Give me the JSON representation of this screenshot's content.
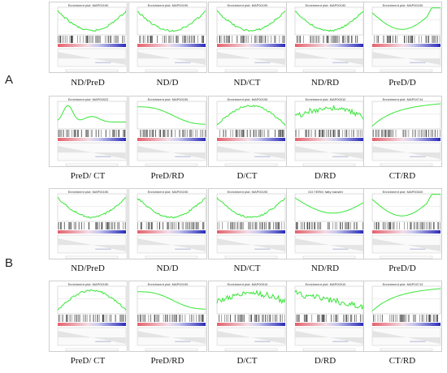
{
  "figure": {
    "sections": [
      {
        "label": "A",
        "rows": [
          {
            "panels": [
              {
                "title": "Enrichment plot: MAP00190",
                "caption": "ND/PreD",
                "curve": "valley"
              },
              {
                "title": "Enrichment plot: MAP00190",
                "caption": "ND/D",
                "curve": "valley"
              },
              {
                "title": "Enrichment plot: MAP00190",
                "caption": "ND/CT",
                "curve": "valley"
              },
              {
                "title": "Enrichment plot: MAP00190",
                "caption": "ND/RD",
                "curve": "valley"
              },
              {
                "title": "Enrichment plot: MAP00190",
                "caption": "PreD/D",
                "curve": "valley-right"
              }
            ]
          },
          {
            "panels": [
              {
                "title": "Enrichment plot: MAP00022",
                "caption": "PreD/ CT",
                "curve": "hill-early"
              },
              {
                "title": "Enrichment plot: MAP00190",
                "caption": "PreD/RD",
                "curve": "decline"
              },
              {
                "title": "Enrichment plot: MAP00190",
                "caption": "D/CT",
                "curve": "hill"
              },
              {
                "title": "Enrichment plot: MAP00010",
                "caption": "D/RD",
                "curve": "jagged"
              },
              {
                "title": "Enrichment plot: MAP04714",
                "caption": "CT/RD",
                "curve": "rise"
              }
            ]
          }
        ]
      },
      {
        "label": "B",
        "rows": [
          {
            "panels": [
              {
                "title": "Enrichment plot: MAP00190",
                "caption": "ND/PreD",
                "curve": "valley"
              },
              {
                "title": "Enrichment plot: MAP00190",
                "caption": "ND/D",
                "curve": "valley"
              },
              {
                "title": "Enrichment plot: MAP00190",
                "caption": "ND/CT",
                "curve": "valley"
              },
              {
                "title": "GO:TERM: fatty transfer",
                "caption": "ND/RD",
                "curve": "flat"
              },
              {
                "title": "Enrichment plot: MAP00020",
                "caption": "PreD/D",
                "curve": "valley-right"
              }
            ]
          },
          {
            "panels": [
              {
                "title": "Enrichment plot: MAP00190",
                "caption": "PreD/ CT",
                "curve": "hill"
              },
              {
                "title": "Enrichment plot: MAP00190",
                "caption": "PreD/RD",
                "curve": "decline"
              },
              {
                "title": "Enrichment plot: MAP00010",
                "caption": "D/CT",
                "curve": "jagged"
              },
              {
                "title": "Enrichment plot: MAP00010",
                "caption": "D/RD",
                "curve": "decline-jag"
              },
              {
                "title": "Enrichment plot: MAP04713",
                "caption": "CT/RD",
                "curve": "rise"
              }
            ]
          }
        ]
      }
    ],
    "colors": {
      "curve": "#39e639",
      "barcode": "#222222",
      "red": "#e4606b",
      "blue": "#2a2ab8",
      "sketch": "#9aa0c8"
    }
  }
}
